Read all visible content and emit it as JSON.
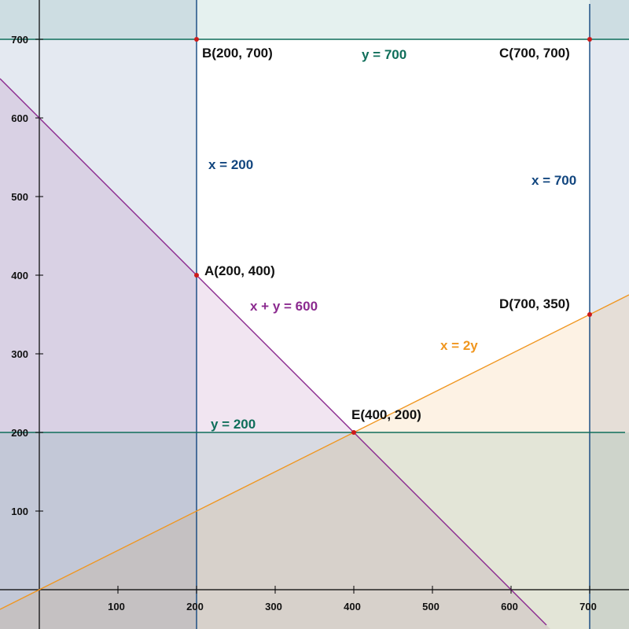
{
  "chart_data": {
    "type": "line",
    "xlim": [
      -50,
      750
    ],
    "ylim": [
      -50,
      750
    ],
    "grid": false,
    "x_ticks": [
      {
        "value": 100,
        "label": "100"
      },
      {
        "value": 200,
        "label": "200"
      },
      {
        "value": 300,
        "label": "300"
      },
      {
        "value": 400,
        "label": "400"
      },
      {
        "value": 500,
        "label": "500"
      },
      {
        "value": 600,
        "label": "600"
      },
      {
        "value": 700,
        "label": "700"
      }
    ],
    "y_ticks": [
      {
        "value": 100,
        "label": "100"
      },
      {
        "value": 200,
        "label": "200"
      },
      {
        "value": 300,
        "label": "300"
      },
      {
        "value": 400,
        "label": "400"
      },
      {
        "value": 500,
        "label": "500"
      },
      {
        "value": 600,
        "label": "600"
      },
      {
        "value": 700,
        "label": "700"
      }
    ],
    "lines": [
      {
        "id": "y700",
        "label": "y = 700",
        "color": "#0f6e5a",
        "p1": [
          -50,
          700
        ],
        "p2": [
          750,
          700
        ],
        "label_at": [
          410,
          675
        ]
      },
      {
        "id": "x200",
        "label": "x = 200",
        "color": "#12467f",
        "p1": [
          200,
          -55
        ],
        "p2": [
          200,
          750
        ],
        "label_at": [
          215,
          535
        ]
      },
      {
        "id": "x700",
        "label": "x = 700",
        "color": "#12467f",
        "p1": [
          700,
          -55
        ],
        "p2": [
          700,
          745
        ],
        "label_at": [
          626,
          515
        ]
      },
      {
        "id": "xy600",
        "label": "x + y = 600",
        "color": "#8b2a8f",
        "p1": [
          -50,
          650
        ],
        "p2": [
          645,
          -45
        ],
        "label_at": [
          268,
          355
        ]
      },
      {
        "id": "x2y",
        "label": "x = 2y",
        "color": "#f0961f",
        "p1": [
          -50,
          -25
        ],
        "p2": [
          750,
          375
        ],
        "label_at": [
          510,
          305
        ]
      },
      {
        "id": "y200",
        "label": "y = 200",
        "color": "#0f6e5a",
        "p1": [
          -50,
          200
        ],
        "p2": [
          745,
          200
        ],
        "label_at": [
          218,
          205
        ]
      }
    ],
    "regions": [
      {
        "id": "x200-shade",
        "color": "#1f4e8c",
        "opacity": 0.12,
        "points": [
          [
            -50,
            -50
          ],
          [
            200,
            -50
          ],
          [
            200,
            750
          ],
          [
            -50,
            750
          ]
        ]
      },
      {
        "id": "x700-shade",
        "color": "#1f4e8c",
        "opacity": 0.12,
        "points": [
          [
            700,
            -50
          ],
          [
            750,
            -50
          ],
          [
            750,
            750
          ],
          [
            700,
            750
          ]
        ]
      },
      {
        "id": "y700-shade",
        "color": "#2a8f7a",
        "opacity": 0.12,
        "points": [
          [
            -50,
            700
          ],
          [
            750,
            700
          ],
          [
            750,
            750
          ],
          [
            -50,
            750
          ]
        ]
      },
      {
        "id": "xy600-shade",
        "color": "#8b2a8f",
        "opacity": 0.12,
        "points": [
          [
            -50,
            -50
          ],
          [
            -50,
            650
          ],
          [
            650,
            -50
          ]
        ]
      },
      {
        "id": "x2y-shade",
        "color": "#f0961f",
        "opacity": 0.12,
        "points": [
          [
            -50,
            -50
          ],
          [
            -50,
            -25
          ],
          [
            750,
            375
          ],
          [
            750,
            -50
          ]
        ]
      },
      {
        "id": "y200-shade",
        "color": "#2a8f7a",
        "opacity": 0.12,
        "points": [
          [
            -50,
            -50
          ],
          [
            750,
            -50
          ],
          [
            750,
            200
          ],
          [
            -50,
            200
          ]
        ]
      }
    ],
    "points": [
      {
        "id": "A",
        "label": "A(200, 400)",
        "x": 200,
        "y": 400,
        "label_at": [
          210,
          400
        ]
      },
      {
        "id": "B",
        "label": "B(200, 700)",
        "x": 200,
        "y": 700,
        "label_at": [
          207,
          677
        ]
      },
      {
        "id": "C",
        "label": "C(700, 700)",
        "x": 700,
        "y": 700,
        "label_at": [
          585,
          677
        ]
      },
      {
        "id": "D",
        "label": "D(700, 350)",
        "x": 700,
        "y": 350,
        "label_at": [
          585,
          358
        ]
      },
      {
        "id": "E",
        "label": "E(400, 200)",
        "x": 400,
        "y": 200,
        "label_at": [
          397,
          217
        ]
      }
    ],
    "point_color": "#cc1a1a"
  }
}
